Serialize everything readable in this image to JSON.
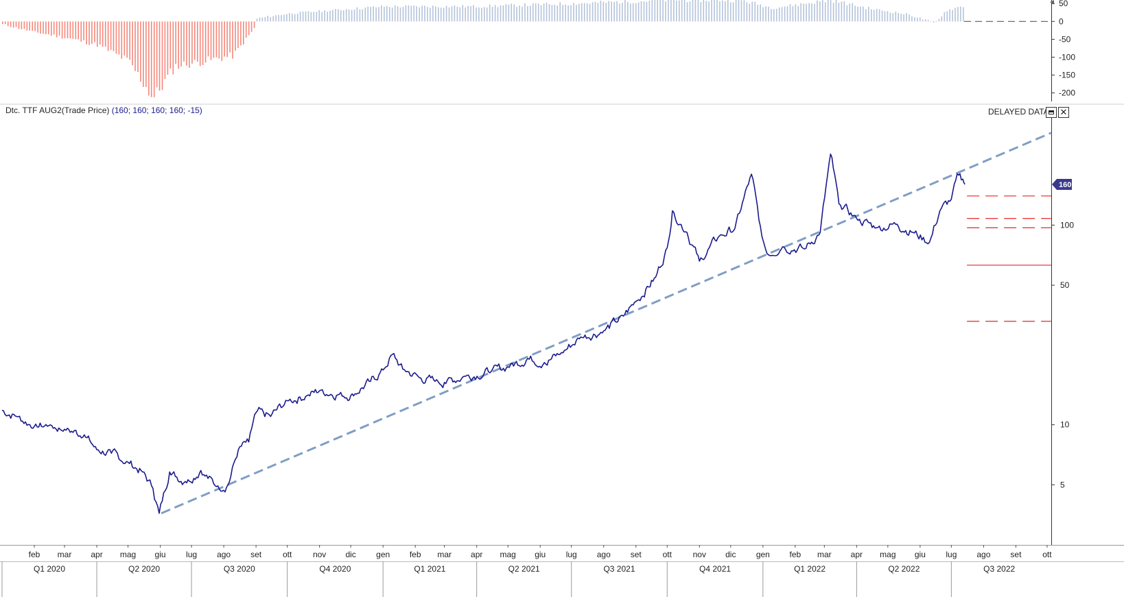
{
  "header": {
    "instrument": "Dtc. TTF AUG2(Trade Price)",
    "values": "(160; 160; 160; 160; -15)",
    "status": "DELAYED DATA"
  },
  "controls": {
    "maximize_icon": "maximize-icon",
    "close_icon": "close-icon",
    "close_glyph": "✕"
  },
  "colors": {
    "price": "#1a1a8c",
    "trend": "#7f9ec4",
    "levels": "#e8393a",
    "osc_pos": "#b3c3da",
    "osc_neg": "#f4877a",
    "badge": "#3a3a8c"
  },
  "chart_data": [
    {
      "type": "bar",
      "panel": "oscillator",
      "title": "",
      "ylim": [
        -220,
        60
      ],
      "y_ticks": [
        "50",
        "0",
        "-50",
        "-100",
        "-150",
        "-200"
      ],
      "y_tick_values": [
        50,
        0,
        -50,
        -100,
        -150,
        -200
      ],
      "x_start": "2020-01-01",
      "x_end": "2022-07-14",
      "keypoints": [
        {
          "x": "2020-01-01",
          "y": -8
        },
        {
          "x": "2020-02-01",
          "y": -30
        },
        {
          "x": "2020-03-01",
          "y": -45
        },
        {
          "x": "2020-04-01",
          "y": -65
        },
        {
          "x": "2020-05-01",
          "y": -110
        },
        {
          "x": "2020-05-25",
          "y": -215
        },
        {
          "x": "2020-06-15",
          "y": -125
        },
        {
          "x": "2020-07-15",
          "y": -110
        },
        {
          "x": "2020-08-10",
          "y": -95
        },
        {
          "x": "2020-08-31",
          "y": -15
        },
        {
          "x": "2020-09-01",
          "y": 8
        },
        {
          "x": "2020-10-01",
          "y": 22
        },
        {
          "x": "2021-01-01",
          "y": 42
        },
        {
          "x": "2021-04-01",
          "y": 42
        },
        {
          "x": "2021-07-01",
          "y": 50
        },
        {
          "x": "2021-10-01",
          "y": 60
        },
        {
          "x": "2021-12-10",
          "y": 60
        },
        {
          "x": "2022-01-10",
          "y": 38
        },
        {
          "x": "2022-03-07",
          "y": 60
        },
        {
          "x": "2022-04-15",
          "y": 35
        },
        {
          "x": "2022-05-20",
          "y": 20
        },
        {
          "x": "2022-06-15",
          "y": -5
        },
        {
          "x": "2022-06-25",
          "y": 30
        },
        {
          "x": "2022-07-14",
          "y": 45
        }
      ],
      "zero_line": "dashed"
    },
    {
      "type": "line",
      "panel": "price",
      "title": "Dtc. TTF AUG2(Trade Price)",
      "scale": "log",
      "ylim": [
        2.5,
        350
      ],
      "y_ticks": [
        "100",
        "50",
        "10",
        "5"
      ],
      "y_tick_values": [
        100,
        50,
        10,
        5
      ],
      "last_value": "160",
      "x_months": [
        "feb",
        "mar",
        "apr",
        "mag",
        "giu",
        "lug",
        "ago",
        "set",
        "ott",
        "nov",
        "dic",
        "gen",
        "feb",
        "mar",
        "apr",
        "mag",
        "giu",
        "lug",
        "ago",
        "set",
        "ott",
        "nov",
        "dic",
        "gen",
        "feb",
        "mar",
        "apr",
        "mag",
        "giu",
        "lug",
        "ago",
        "set",
        "ott"
      ],
      "x_month_dates": [
        "2020-02-01",
        "2020-03-01",
        "2020-04-01",
        "2020-05-01",
        "2020-06-01",
        "2020-07-01",
        "2020-08-01",
        "2020-09-01",
        "2020-10-01",
        "2020-11-01",
        "2020-12-01",
        "2021-01-01",
        "2021-02-01",
        "2021-03-01",
        "2021-04-01",
        "2021-05-01",
        "2021-06-01",
        "2021-07-01",
        "2021-08-01",
        "2021-09-01",
        "2021-10-01",
        "2021-11-01",
        "2021-12-01",
        "2022-01-01",
        "2022-02-01",
        "2022-03-01",
        "2022-04-01",
        "2022-05-01",
        "2022-06-01",
        "2022-07-01",
        "2022-08-01",
        "2022-09-01",
        "2022-10-01"
      ],
      "x_quarters": [
        "Q1 2020",
        "Q2 2020",
        "Q3 2020",
        "Q4 2020",
        "Q1 2021",
        "Q2 2021",
        "Q3 2021",
        "Q4 2021",
        "Q1 2022",
        "Q2 2022",
        "Q3 2022"
      ],
      "x_quarter_dates": [
        "2020-01-01",
        "2020-04-01",
        "2020-07-01",
        "2020-10-01",
        "2021-01-01",
        "2021-04-01",
        "2021-07-01",
        "2021-10-01",
        "2022-01-01",
        "2022-04-01",
        "2022-07-01",
        "2022-10-01"
      ],
      "x_start": "2020-01-01",
      "x_end": "2022-10-05",
      "series": [
        {
          "values": [
            {
              "x": "2020-01-01",
              "y": 11.8
            },
            {
              "x": "2020-01-15",
              "y": 11.0
            },
            {
              "x": "2020-02-01",
              "y": 9.8
            },
            {
              "x": "2020-02-15",
              "y": 9.9
            },
            {
              "x": "2020-03-01",
              "y": 9.5
            },
            {
              "x": "2020-03-20",
              "y": 8.9
            },
            {
              "x": "2020-04-01",
              "y": 7.5
            },
            {
              "x": "2020-04-15",
              "y": 7.2
            },
            {
              "x": "2020-05-01",
              "y": 6.5
            },
            {
              "x": "2020-05-15",
              "y": 5.8
            },
            {
              "x": "2020-05-25",
              "y": 4.8
            },
            {
              "x": "2020-05-31",
              "y": 3.6
            },
            {
              "x": "2020-06-10",
              "y": 5.8
            },
            {
              "x": "2020-06-25",
              "y": 5.2
            },
            {
              "x": "2020-07-10",
              "y": 5.9
            },
            {
              "x": "2020-07-25",
              "y": 4.9
            },
            {
              "x": "2020-08-05",
              "y": 5.0
            },
            {
              "x": "2020-08-15",
              "y": 7.5
            },
            {
              "x": "2020-08-25",
              "y": 8.2
            },
            {
              "x": "2020-09-01",
              "y": 11.5
            },
            {
              "x": "2020-09-15",
              "y": 11.0
            },
            {
              "x": "2020-10-01",
              "y": 13.2
            },
            {
              "x": "2020-10-20",
              "y": 14.0
            },
            {
              "x": "2020-11-01",
              "y": 14.8
            },
            {
              "x": "2020-11-20",
              "y": 14.2
            },
            {
              "x": "2020-12-01",
              "y": 14.0
            },
            {
              "x": "2020-12-20",
              "y": 16.5
            },
            {
              "x": "2021-01-01",
              "y": 18.8
            },
            {
              "x": "2021-01-10",
              "y": 22.5
            },
            {
              "x": "2021-01-20",
              "y": 19.0
            },
            {
              "x": "2021-02-05",
              "y": 17.2
            },
            {
              "x": "2021-02-20",
              "y": 16.5
            },
            {
              "x": "2021-03-01",
              "y": 16.3
            },
            {
              "x": "2021-03-20",
              "y": 17.5
            },
            {
              "x": "2021-04-15",
              "y": 18.5
            },
            {
              "x": "2021-05-01",
              "y": 19.5
            },
            {
              "x": "2021-05-20",
              "y": 21.5
            },
            {
              "x": "2021-06-05",
              "y": 20.5
            },
            {
              "x": "2021-06-20",
              "y": 22.5
            },
            {
              "x": "2021-07-10",
              "y": 27.5
            },
            {
              "x": "2021-08-01",
              "y": 29.5
            },
            {
              "x": "2021-08-20",
              "y": 35.0
            },
            {
              "x": "2021-09-01",
              "y": 41.5
            },
            {
              "x": "2021-09-20",
              "y": 55.0
            },
            {
              "x": "2021-10-01",
              "y": 77.0
            },
            {
              "x": "2021-10-06",
              "y": 118.0
            },
            {
              "x": "2021-10-20",
              "y": 92.0
            },
            {
              "x": "2021-11-01",
              "y": 66.0
            },
            {
              "x": "2021-11-20",
              "y": 88.0
            },
            {
              "x": "2021-12-05",
              "y": 96.0
            },
            {
              "x": "2021-12-21",
              "y": 180.0
            },
            {
              "x": "2021-12-31",
              "y": 88.0
            },
            {
              "x": "2022-01-05",
              "y": 72.0
            },
            {
              "x": "2022-01-20",
              "y": 78.0
            },
            {
              "x": "2022-02-10",
              "y": 76.0
            },
            {
              "x": "2022-02-25",
              "y": 92.0
            },
            {
              "x": "2022-03-07",
              "y": 227.0
            },
            {
              "x": "2022-03-15",
              "y": 128.0
            },
            {
              "x": "2022-04-01",
              "y": 108.0
            },
            {
              "x": "2022-04-20",
              "y": 97.0
            },
            {
              "x": "2022-05-10",
              "y": 101.0
            },
            {
              "x": "2022-05-25",
              "y": 92.0
            },
            {
              "x": "2022-06-10",
              "y": 82.0
            },
            {
              "x": "2022-06-20",
              "y": 118.0
            },
            {
              "x": "2022-07-01",
              "y": 135.0
            },
            {
              "x": "2022-07-08",
              "y": 178.0
            },
            {
              "x": "2022-07-12",
              "y": 170.0
            },
            {
              "x": "2022-07-14",
              "y": 160.0
            }
          ]
        }
      ],
      "trendline": [
        {
          "x": "2020-06-02",
          "y": 3.6
        },
        {
          "x": "2022-10-05",
          "y": 290.0
        }
      ],
      "horizontal_levels": [
        {
          "y": 140.0,
          "style": "dashed"
        },
        {
          "y": 108.0,
          "style": "dashed"
        },
        {
          "y": 97.0,
          "style": "dashed"
        },
        {
          "y": 63.0,
          "style": "solid"
        },
        {
          "y": 33.0,
          "style": "dashed"
        }
      ],
      "levels_start": "2022-07-16"
    }
  ]
}
